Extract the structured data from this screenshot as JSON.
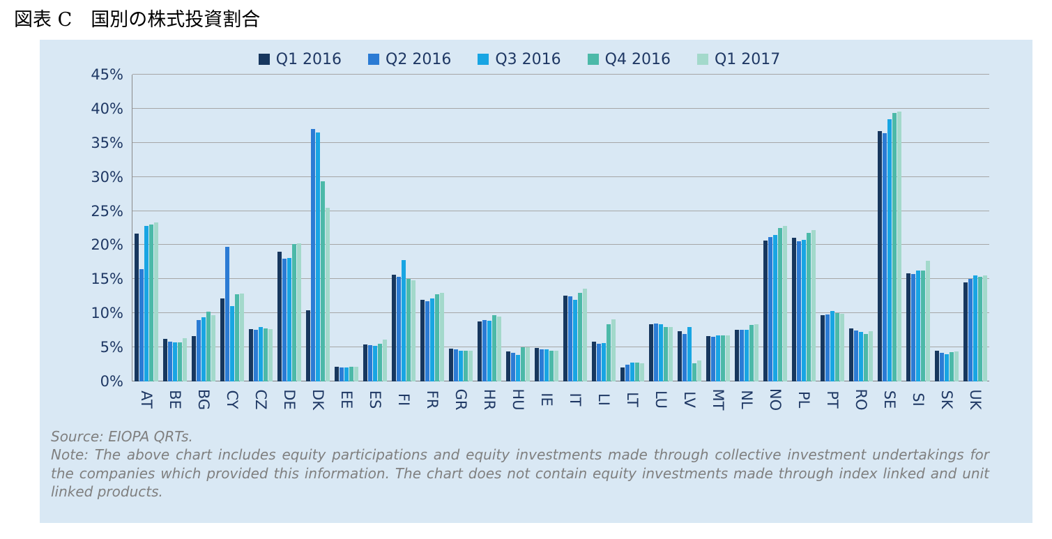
{
  "page": {
    "title": "図表 C　国別の株式投資割合"
  },
  "chart_data": {
    "type": "bar",
    "title": "",
    "xlabel": "",
    "ylabel": "",
    "ylim": [
      0,
      45
    ],
    "ytick_step": 5,
    "ytick_suffix": "%",
    "grid": true,
    "legend_position": "top",
    "categories": [
      "AT",
      "BE",
      "BG",
      "CY",
      "CZ",
      "DE",
      "DK",
      "EE",
      "ES",
      "FI",
      "FR",
      "GR",
      "HR",
      "HU",
      "IE",
      "IT",
      "LI",
      "LT",
      "LU",
      "LV",
      "MT",
      "NL",
      "NO",
      "PL",
      "PT",
      "RO",
      "SE",
      "SI",
      "SK",
      "UK"
    ],
    "series": [
      {
        "name": "Q1 2016",
        "color": "#17375e",
        "values": [
          21.7,
          6.2,
          6.7,
          12.2,
          7.7,
          19.0,
          10.4,
          2.2,
          5.4,
          15.6,
          12.0,
          4.8,
          8.8,
          4.4,
          4.9,
          12.6,
          5.8,
          2.0,
          8.4,
          7.4,
          6.6,
          7.6,
          20.7,
          21.1,
          9.7,
          7.8,
          36.7,
          15.9,
          4.5,
          14.5
        ]
      },
      {
        "name": "Q2 2016",
        "color": "#2b7bd4",
        "values": [
          16.5,
          5.8,
          9.0,
          19.7,
          7.6,
          18.0,
          37.0,
          2.0,
          5.3,
          15.3,
          11.8,
          4.7,
          9.0,
          4.2,
          4.7,
          12.5,
          5.5,
          2.5,
          8.5,
          7.0,
          6.5,
          7.6,
          21.2,
          20.6,
          9.8,
          7.5,
          36.4,
          15.8,
          4.2,
          15.0
        ]
      },
      {
        "name": "Q3 2016",
        "color": "#18a5e3",
        "values": [
          22.8,
          5.7,
          9.4,
          11.0,
          8.0,
          18.1,
          36.5,
          2.0,
          5.2,
          17.8,
          12.2,
          4.5,
          8.9,
          3.9,
          4.7,
          12.0,
          5.6,
          2.8,
          8.4,
          8.0,
          6.8,
          7.6,
          21.5,
          20.8,
          10.3,
          7.3,
          38.5,
          16.3,
          4.0,
          15.5
        ]
      },
      {
        "name": "Q4 2016",
        "color": "#4cb9a8",
        "values": [
          23.0,
          5.7,
          10.2,
          12.8,
          7.8,
          20.2,
          29.4,
          2.2,
          5.5,
          15.0,
          12.8,
          4.5,
          9.7,
          5.0,
          4.5,
          13.0,
          8.4,
          2.8,
          8.0,
          2.7,
          6.8,
          8.3,
          22.5,
          21.8,
          10.0,
          7.0,
          39.4,
          16.3,
          4.3,
          15.3
        ]
      },
      {
        "name": "Q1 2017",
        "color": "#a3d9cb",
        "values": [
          23.3,
          6.3,
          9.7,
          12.9,
          7.7,
          20.3,
          25.5,
          2.2,
          6.1,
          14.8,
          13.0,
          4.5,
          9.5,
          5.0,
          4.5,
          13.6,
          9.1,
          2.7,
          8.0,
          3.1,
          6.8,
          8.4,
          22.8,
          22.2,
          9.9,
          7.4,
          39.6,
          17.7,
          4.4,
          15.5
        ]
      }
    ]
  },
  "footer": {
    "source": "Source: EIOPA QRTs.",
    "note": "Note: The above chart includes equity participations and equity investments made through collective investment undertakings for the companies which provided this information. The chart does not contain equity investments made through index linked and unit linked products."
  }
}
